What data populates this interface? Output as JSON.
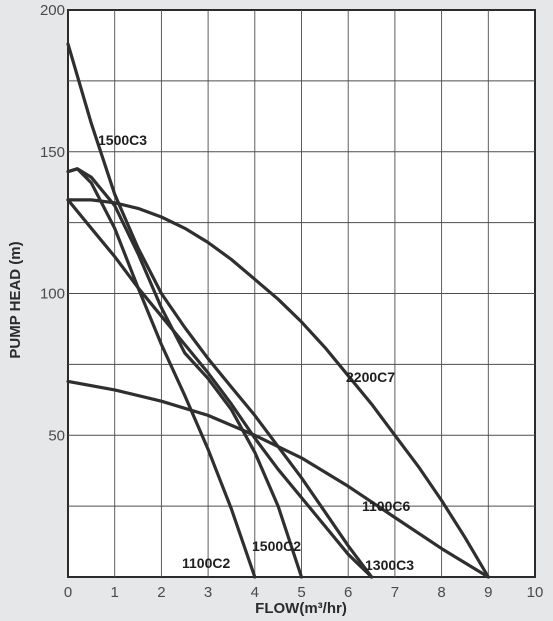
{
  "chart_data": {
    "type": "line",
    "title": "",
    "xlabel": "FLOW(m³/hr)",
    "ylabel": "PUMP HEAD (m)",
    "xlim": [
      0,
      10
    ],
    "ylim": [
      0,
      200
    ],
    "x_ticks": [
      0,
      1,
      2,
      3,
      4,
      5,
      6,
      7,
      8,
      9,
      10
    ],
    "x_tick_labels": [
      "0",
      "1",
      "2",
      "3",
      "4",
      "5",
      "6",
      "7",
      "8",
      "9",
      "10"
    ],
    "y_ticks": [
      50,
      100,
      150,
      200
    ],
    "y_tick_labels": [
      "50",
      "100",
      "150",
      "200"
    ],
    "grid": true,
    "series": [
      {
        "name": "1500C3",
        "x": [
          0,
          0.5,
          1,
          1.5,
          2,
          2.5,
          3,
          3.5,
          4,
          4.5,
          5,
          5.5,
          6,
          6.5
        ],
        "y": [
          188,
          160,
          135,
          116,
          100,
          88,
          77,
          67,
          57,
          46,
          35,
          23,
          11,
          0
        ]
      },
      {
        "name": "2200C7",
        "x": [
          0,
          0.5,
          1,
          1.5,
          2,
          2.5,
          3,
          3.5,
          4,
          4.5,
          5,
          5.5,
          6,
          6.5,
          7,
          7.5,
          8,
          8.5,
          9
        ],
        "y": [
          133,
          133,
          132,
          130,
          127,
          123,
          118,
          112,
          105,
          98,
          90,
          81,
          71,
          61,
          50,
          39,
          27,
          14,
          0
        ]
      },
      {
        "name": "1100C6",
        "x": [
          0,
          1,
          2,
          3,
          4,
          5,
          6,
          7,
          8,
          9
        ],
        "y": [
          69,
          66,
          62,
          57,
          50,
          42,
          32,
          21,
          10,
          0
        ]
      },
      {
        "name": "1300C3",
        "x": [
          0,
          0.5,
          1,
          1.5,
          2,
          2.5,
          3,
          3.5,
          4,
          4.5,
          5,
          5.5,
          6,
          6.5
        ],
        "y": [
          133,
          123,
          113,
          102,
          92,
          82,
          72,
          61,
          49,
          38,
          28,
          18,
          8,
          0
        ]
      },
      {
        "name": "1500C2",
        "x": [
          0,
          0.2,
          0.5,
          1,
          1.5,
          2,
          2.5,
          3,
          3.5,
          4,
          4.5,
          5
        ],
        "y": [
          143,
          144,
          141,
          131,
          114,
          95,
          79,
          70,
          59,
          44,
          25,
          0
        ]
      },
      {
        "name": "1100C2",
        "x": [
          0,
          0.2,
          0.5,
          1,
          1.5,
          2,
          2.5,
          3,
          3.5,
          4
        ],
        "y": [
          143,
          144,
          139,
          123,
          102,
          82,
          64,
          45,
          24,
          0
        ]
      }
    ],
    "annotations": [
      "1500C3",
      "2200C7",
      "1100C6",
      "1300C3",
      "1500C2",
      "1100C2"
    ]
  },
  "colors": {
    "background": "#e6e7e8",
    "plot": "#ffffff",
    "line": "#2f2f2f"
  }
}
